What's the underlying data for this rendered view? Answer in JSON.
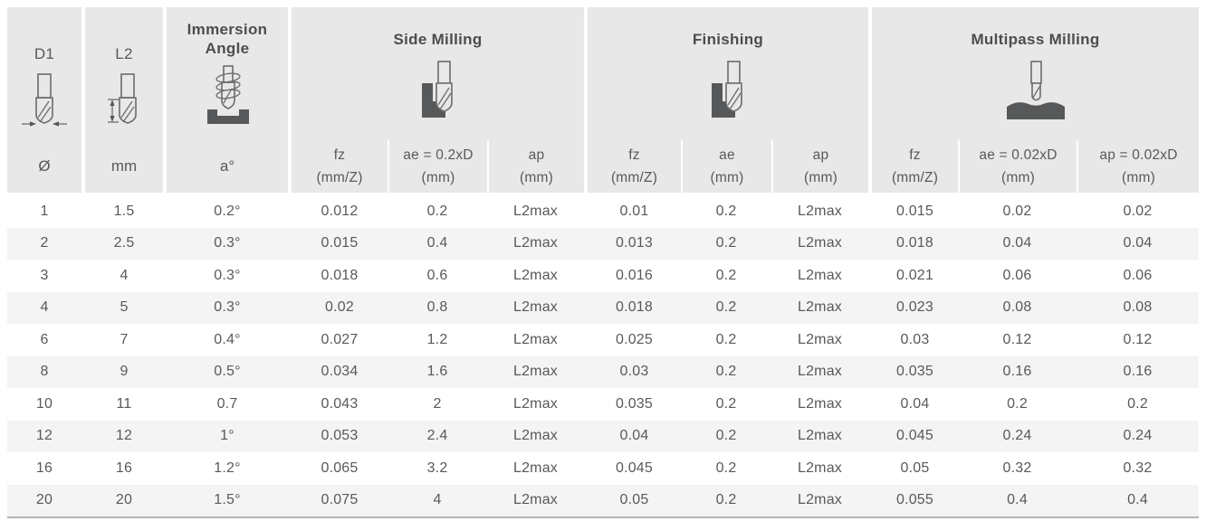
{
  "table": {
    "columns": [
      {
        "label": "D1",
        "unit": "Ø",
        "icon": "endmill-diameter-icon"
      },
      {
        "label": "L2",
        "unit": "mm",
        "icon": "endmill-length-icon"
      },
      {
        "label": "Immersion Angle",
        "unit": "a°",
        "icon": "immersion-angle-icon"
      }
    ],
    "groups": [
      {
        "label": "Side Milling",
        "icon": "side-milling-icon",
        "sub": [
          {
            "name": "fz",
            "unit": "(mm/Z)"
          },
          {
            "name": "ae = 0.2xD",
            "unit": "(mm)"
          },
          {
            "name": "ap",
            "unit": "(mm)"
          }
        ]
      },
      {
        "label": "Finishing",
        "icon": "finishing-icon",
        "sub": [
          {
            "name": "fz",
            "unit": "(mm/Z)"
          },
          {
            "name": "ae",
            "unit": "(mm)"
          },
          {
            "name": "ap",
            "unit": "(mm)"
          }
        ]
      },
      {
        "label": "Multipass Milling",
        "icon": "multipass-milling-icon",
        "sub": [
          {
            "name": "fz",
            "unit": "(mm/Z)"
          },
          {
            "name": "ae = 0.02xD",
            "unit": "(mm)"
          },
          {
            "name": "ap = 0.02xD",
            "unit": "(mm)"
          }
        ]
      }
    ],
    "rows": [
      [
        "1",
        "1.5",
        "0.2°",
        "0.012",
        "0.2",
        "L2max",
        "0.01",
        "0.2",
        "L2max",
        "0.015",
        "0.02",
        "0.02"
      ],
      [
        "2",
        "2.5",
        "0.3°",
        "0.015",
        "0.4",
        "L2max",
        "0.013",
        "0.2",
        "L2max",
        "0.018",
        "0.04",
        "0.04"
      ],
      [
        "3",
        "4",
        "0.3°",
        "0.018",
        "0.6",
        "L2max",
        "0.016",
        "0.2",
        "L2max",
        "0.021",
        "0.06",
        "0.06"
      ],
      [
        "4",
        "5",
        "0.3°",
        "0.02",
        "0.8",
        "L2max",
        "0.018",
        "0.2",
        "L2max",
        "0.023",
        "0.08",
        "0.08"
      ],
      [
        "6",
        "7",
        "0.4°",
        "0.027",
        "1.2",
        "L2max",
        "0.025",
        "0.2",
        "L2max",
        "0.03",
        "0.12",
        "0.12"
      ],
      [
        "8",
        "9",
        "0.5°",
        "0.034",
        "1.6",
        "L2max",
        "0.03",
        "0.2",
        "L2max",
        "0.035",
        "0.16",
        "0.16"
      ],
      [
        "10",
        "11",
        "0.7",
        "0.043",
        "2",
        "L2max",
        "0.035",
        "0.2",
        "L2max",
        "0.04",
        "0.2",
        "0.2"
      ],
      [
        "12",
        "12",
        "1°",
        "0.053",
        "2.4",
        "L2max",
        "0.04",
        "0.2",
        "L2max",
        "0.045",
        "0.24",
        "0.24"
      ],
      [
        "16",
        "16",
        "1.2°",
        "0.065",
        "3.2",
        "L2max",
        "0.045",
        "0.2",
        "L2max",
        "0.05",
        "0.32",
        "0.32"
      ],
      [
        "20",
        "20",
        "1.5°",
        "0.075",
        "4",
        "L2max",
        "0.05",
        "0.2",
        "L2max",
        "0.055",
        "0.4",
        "0.4"
      ]
    ]
  },
  "colors": {
    "header_bg": "#e8e8e8",
    "row_alt_bg": "#f4f4f4",
    "text": "#58595b",
    "title_text": "#4c4d4f",
    "sub_separator": "#ffffff",
    "bottom_border": "#b5b5b5",
    "icon_dark": "#575859"
  }
}
